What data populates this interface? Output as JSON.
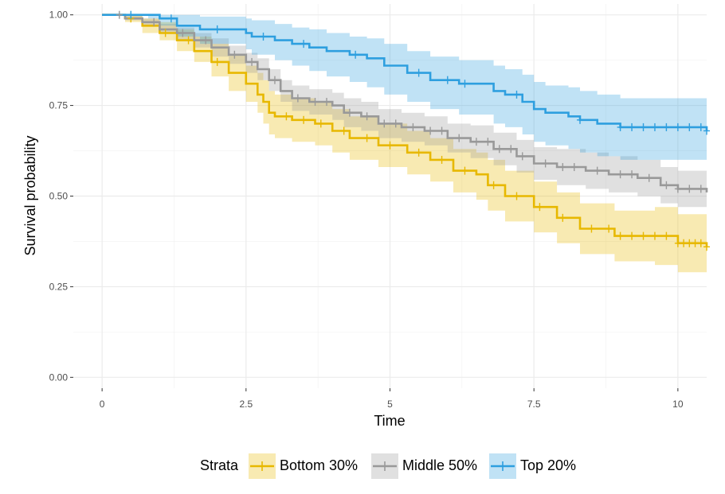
{
  "chart_data": {
    "type": "line",
    "subtype": "kaplan-meier survival curves with confidence bands and censor marks",
    "title": "",
    "xlabel": "Time",
    "ylabel": "Survival probability",
    "xlim": [
      -0.5,
      10.5
    ],
    "ylim": [
      -0.03,
      1.03
    ],
    "x_ticks": [
      0,
      2.5,
      5,
      7.5,
      10
    ],
    "x_tick_labels": [
      "0",
      "2.5",
      "5",
      "7.5",
      "10"
    ],
    "y_ticks": [
      0,
      0.25,
      0.5,
      0.75,
      1.0
    ],
    "y_tick_labels": [
      "0.00",
      "0.25",
      "0.50",
      "0.75",
      "1.00"
    ],
    "grid": true,
    "legend": {
      "title": "Strata",
      "placement": "bottom",
      "entries": [
        "Bottom 30%",
        "Middle 50%",
        "Top 20%"
      ]
    },
    "series": [
      {
        "name": "Bottom 30%",
        "color": "#E7B800",
        "band_color": "#E7B800",
        "points": [
          [
            0,
            1.0
          ],
          [
            0.4,
            0.99
          ],
          [
            0.7,
            0.97
          ],
          [
            1.0,
            0.95
          ],
          [
            1.3,
            0.93
          ],
          [
            1.6,
            0.9
          ],
          [
            1.9,
            0.87
          ],
          [
            2.2,
            0.84
          ],
          [
            2.5,
            0.81
          ],
          [
            2.7,
            0.78
          ],
          [
            2.8,
            0.76
          ],
          [
            2.9,
            0.73
          ],
          [
            3.0,
            0.72
          ],
          [
            3.3,
            0.71
          ],
          [
            3.7,
            0.7
          ],
          [
            4.0,
            0.68
          ],
          [
            4.3,
            0.66
          ],
          [
            4.8,
            0.64
          ],
          [
            5.3,
            0.62
          ],
          [
            5.7,
            0.6
          ],
          [
            6.1,
            0.57
          ],
          [
            6.5,
            0.56
          ],
          [
            6.7,
            0.53
          ],
          [
            7.0,
            0.5
          ],
          [
            7.5,
            0.47
          ],
          [
            7.9,
            0.44
          ],
          [
            8.3,
            0.41
          ],
          [
            8.9,
            0.39
          ],
          [
            9.6,
            0.39
          ],
          [
            10.0,
            0.37
          ],
          [
            10.5,
            0.36
          ]
        ],
        "lower": [
          [
            0,
            1.0
          ],
          [
            0.4,
            0.98
          ],
          [
            0.7,
            0.95
          ],
          [
            1.0,
            0.93
          ],
          [
            1.3,
            0.9
          ],
          [
            1.6,
            0.87
          ],
          [
            1.9,
            0.83
          ],
          [
            2.2,
            0.79
          ],
          [
            2.5,
            0.76
          ],
          [
            2.7,
            0.73
          ],
          [
            2.8,
            0.7
          ],
          [
            2.9,
            0.67
          ],
          [
            3.0,
            0.66
          ],
          [
            3.3,
            0.65
          ],
          [
            3.7,
            0.64
          ],
          [
            4.0,
            0.62
          ],
          [
            4.3,
            0.6
          ],
          [
            4.8,
            0.58
          ],
          [
            5.3,
            0.56
          ],
          [
            5.7,
            0.54
          ],
          [
            6.1,
            0.51
          ],
          [
            6.5,
            0.49
          ],
          [
            6.7,
            0.46
          ],
          [
            7.0,
            0.43
          ],
          [
            7.5,
            0.4
          ],
          [
            7.9,
            0.37
          ],
          [
            8.3,
            0.34
          ],
          [
            8.9,
            0.32
          ],
          [
            9.6,
            0.31
          ],
          [
            10.0,
            0.29
          ],
          [
            10.5,
            0.29
          ]
        ],
        "upper": [
          [
            0,
            1.0
          ],
          [
            0.4,
            1.0
          ],
          [
            0.7,
            0.99
          ],
          [
            1.0,
            0.98
          ],
          [
            1.3,
            0.96
          ],
          [
            1.6,
            0.94
          ],
          [
            1.9,
            0.92
          ],
          [
            2.2,
            0.89
          ],
          [
            2.5,
            0.86
          ],
          [
            2.7,
            0.84
          ],
          [
            2.8,
            0.82
          ],
          [
            2.9,
            0.79
          ],
          [
            3.0,
            0.78
          ],
          [
            3.3,
            0.77
          ],
          [
            3.7,
            0.76
          ],
          [
            4.0,
            0.74
          ],
          [
            4.3,
            0.72
          ],
          [
            4.8,
            0.7
          ],
          [
            5.3,
            0.68
          ],
          [
            5.7,
            0.66
          ],
          [
            6.1,
            0.63
          ],
          [
            6.5,
            0.62
          ],
          [
            6.7,
            0.6
          ],
          [
            7.0,
            0.57
          ],
          [
            7.5,
            0.54
          ],
          [
            7.9,
            0.51
          ],
          [
            8.3,
            0.48
          ],
          [
            8.9,
            0.46
          ],
          [
            9.6,
            0.47
          ],
          [
            10.0,
            0.45
          ],
          [
            10.5,
            0.44
          ]
        ],
        "censor_times": [
          0.5,
          1.1,
          1.5,
          2.0,
          3.2,
          3.5,
          3.8,
          4.2,
          4.6,
          5.0,
          5.5,
          5.9,
          6.3,
          6.8,
          7.2,
          7.6,
          8.0,
          8.5,
          8.8,
          9.0,
          9.2,
          9.4,
          9.6,
          9.8,
          10.0,
          10.1,
          10.2,
          10.3,
          10.4,
          10.5
        ]
      },
      {
        "name": "Middle 50%",
        "color": "#999999",
        "band_color": "#999999",
        "points": [
          [
            0,
            1.0
          ],
          [
            0.4,
            0.99
          ],
          [
            0.7,
            0.98
          ],
          [
            1.0,
            0.96
          ],
          [
            1.3,
            0.95
          ],
          [
            1.6,
            0.93
          ],
          [
            1.9,
            0.91
          ],
          [
            2.2,
            0.89
          ],
          [
            2.5,
            0.87
          ],
          [
            2.7,
            0.85
          ],
          [
            2.9,
            0.82
          ],
          [
            3.1,
            0.79
          ],
          [
            3.3,
            0.77
          ],
          [
            3.6,
            0.76
          ],
          [
            4.0,
            0.75
          ],
          [
            4.2,
            0.73
          ],
          [
            4.5,
            0.72
          ],
          [
            4.8,
            0.7
          ],
          [
            5.2,
            0.69
          ],
          [
            5.6,
            0.68
          ],
          [
            6.0,
            0.66
          ],
          [
            6.4,
            0.65
          ],
          [
            6.8,
            0.63
          ],
          [
            7.2,
            0.61
          ],
          [
            7.5,
            0.59
          ],
          [
            7.9,
            0.58
          ],
          [
            8.4,
            0.57
          ],
          [
            8.8,
            0.56
          ],
          [
            9.3,
            0.55
          ],
          [
            9.7,
            0.53
          ],
          [
            10.0,
            0.52
          ],
          [
            10.5,
            0.51
          ]
        ],
        "lower": [
          [
            0,
            1.0
          ],
          [
            0.4,
            0.985
          ],
          [
            0.7,
            0.97
          ],
          [
            1.0,
            0.95
          ],
          [
            1.3,
            0.93
          ],
          [
            1.6,
            0.91
          ],
          [
            1.9,
            0.885
          ],
          [
            2.2,
            0.865
          ],
          [
            2.5,
            0.84
          ],
          [
            2.7,
            0.82
          ],
          [
            2.9,
            0.79
          ],
          [
            3.1,
            0.76
          ],
          [
            3.3,
            0.735
          ],
          [
            3.6,
            0.725
          ],
          [
            4.0,
            0.71
          ],
          [
            4.2,
            0.69
          ],
          [
            4.5,
            0.68
          ],
          [
            4.8,
            0.66
          ],
          [
            5.2,
            0.65
          ],
          [
            5.6,
            0.64
          ],
          [
            6.0,
            0.62
          ],
          [
            6.4,
            0.605
          ],
          [
            6.8,
            0.585
          ],
          [
            7.2,
            0.565
          ],
          [
            7.5,
            0.545
          ],
          [
            7.9,
            0.53
          ],
          [
            8.4,
            0.52
          ],
          [
            8.8,
            0.51
          ],
          [
            9.3,
            0.5
          ],
          [
            9.7,
            0.48
          ],
          [
            10.0,
            0.47
          ],
          [
            10.5,
            0.46
          ]
        ],
        "upper": [
          [
            0,
            1.0
          ],
          [
            0.4,
            1.0
          ],
          [
            0.7,
            0.99
          ],
          [
            1.0,
            0.975
          ],
          [
            1.3,
            0.965
          ],
          [
            1.6,
            0.95
          ],
          [
            1.9,
            0.935
          ],
          [
            2.2,
            0.915
          ],
          [
            2.5,
            0.895
          ],
          [
            2.7,
            0.88
          ],
          [
            2.9,
            0.85
          ],
          [
            3.1,
            0.82
          ],
          [
            3.3,
            0.805
          ],
          [
            3.6,
            0.795
          ],
          [
            4.0,
            0.785
          ],
          [
            4.2,
            0.77
          ],
          [
            4.5,
            0.76
          ],
          [
            4.8,
            0.74
          ],
          [
            5.2,
            0.73
          ],
          [
            5.6,
            0.72
          ],
          [
            6.0,
            0.7
          ],
          [
            6.4,
            0.695
          ],
          [
            6.8,
            0.675
          ],
          [
            7.2,
            0.655
          ],
          [
            7.5,
            0.635
          ],
          [
            7.9,
            0.63
          ],
          [
            8.4,
            0.62
          ],
          [
            8.8,
            0.61
          ],
          [
            9.3,
            0.6
          ],
          [
            9.7,
            0.58
          ],
          [
            10.0,
            0.57
          ],
          [
            10.5,
            0.56
          ]
        ],
        "censor_times": [
          0.3,
          0.9,
          1.4,
          1.8,
          2.3,
          2.6,
          3.0,
          3.4,
          3.7,
          3.9,
          4.3,
          4.6,
          4.9,
          5.1,
          5.4,
          5.7,
          5.9,
          6.2,
          6.5,
          6.7,
          6.9,
          7.1,
          7.3,
          7.7,
          8.0,
          8.2,
          8.6,
          9.0,
          9.2,
          9.5,
          9.8,
          10.0,
          10.2,
          10.4
        ]
      },
      {
        "name": "Top 20%",
        "color": "#2E9FDF",
        "band_color": "#2E9FDF",
        "points": [
          [
            0,
            1.0
          ],
          [
            0.8,
            1.0
          ],
          [
            1.0,
            0.99
          ],
          [
            1.3,
            0.97
          ],
          [
            1.7,
            0.96
          ],
          [
            2.5,
            0.95
          ],
          [
            2.6,
            0.94
          ],
          [
            3.0,
            0.93
          ],
          [
            3.3,
            0.92
          ],
          [
            3.6,
            0.91
          ],
          [
            3.9,
            0.9
          ],
          [
            4.3,
            0.89
          ],
          [
            4.6,
            0.88
          ],
          [
            4.9,
            0.86
          ],
          [
            5.3,
            0.84
          ],
          [
            5.7,
            0.82
          ],
          [
            6.2,
            0.81
          ],
          [
            6.8,
            0.79
          ],
          [
            7.0,
            0.78
          ],
          [
            7.3,
            0.76
          ],
          [
            7.5,
            0.74
          ],
          [
            7.7,
            0.73
          ],
          [
            8.1,
            0.72
          ],
          [
            8.3,
            0.71
          ],
          [
            8.6,
            0.7
          ],
          [
            9.0,
            0.69
          ],
          [
            10.5,
            0.68
          ]
        ],
        "lower": [
          [
            0,
            1.0
          ],
          [
            0.8,
            0.99
          ],
          [
            1.0,
            0.97
          ],
          [
            1.3,
            0.94
          ],
          [
            1.7,
            0.92
          ],
          [
            2.5,
            0.905
          ],
          [
            2.6,
            0.89
          ],
          [
            3.0,
            0.875
          ],
          [
            3.3,
            0.86
          ],
          [
            3.6,
            0.845
          ],
          [
            3.9,
            0.83
          ],
          [
            4.3,
            0.815
          ],
          [
            4.6,
            0.8
          ],
          [
            4.9,
            0.78
          ],
          [
            5.3,
            0.76
          ],
          [
            5.7,
            0.74
          ],
          [
            6.2,
            0.725
          ],
          [
            6.8,
            0.7
          ],
          [
            7.0,
            0.69
          ],
          [
            7.3,
            0.67
          ],
          [
            7.5,
            0.65
          ],
          [
            7.7,
            0.64
          ],
          [
            8.1,
            0.63
          ],
          [
            8.3,
            0.62
          ],
          [
            8.6,
            0.61
          ],
          [
            9.0,
            0.6
          ],
          [
            10.5,
            0.595
          ]
        ],
        "upper": [
          [
            0,
            1.0
          ],
          [
            0.8,
            1.0
          ],
          [
            1.0,
            1.0
          ],
          [
            1.3,
            1.0
          ],
          [
            1.7,
            0.995
          ],
          [
            2.5,
            0.99
          ],
          [
            2.6,
            0.985
          ],
          [
            3.0,
            0.975
          ],
          [
            3.3,
            0.965
          ],
          [
            3.6,
            0.96
          ],
          [
            3.9,
            0.95
          ],
          [
            4.3,
            0.94
          ],
          [
            4.6,
            0.935
          ],
          [
            4.9,
            0.92
          ],
          [
            5.3,
            0.9
          ],
          [
            5.7,
            0.885
          ],
          [
            6.2,
            0.875
          ],
          [
            6.8,
            0.86
          ],
          [
            7.0,
            0.85
          ],
          [
            7.3,
            0.835
          ],
          [
            7.5,
            0.815
          ],
          [
            7.7,
            0.805
          ],
          [
            8.1,
            0.8
          ],
          [
            8.3,
            0.79
          ],
          [
            8.6,
            0.78
          ],
          [
            9.0,
            0.77
          ],
          [
            10.5,
            0.76
          ]
        ],
        "censor_times": [
          0.5,
          1.2,
          2.0,
          2.8,
          3.5,
          4.4,
          5.5,
          6.0,
          6.3,
          7.2,
          8.3,
          9.0,
          9.2,
          9.4,
          9.6,
          9.8,
          10.0,
          10.2,
          10.4,
          10.5
        ]
      }
    ]
  }
}
